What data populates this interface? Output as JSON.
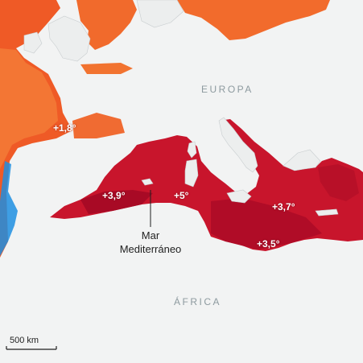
{
  "regions": {
    "europe": "EUROPA",
    "africa": "ÁFRICA"
  },
  "sea": {
    "line1": "Mar",
    "line2": "Mediterráneo"
  },
  "anomalies": {
    "atlantic": "+1,8°",
    "alboran": "+3,9°",
    "balearic": "+5°",
    "ionian": "+3,7°",
    "levant": "+3,5°"
  },
  "scale_bar": {
    "label": "500 km"
  },
  "colors": {
    "land": "#f2f3f3",
    "coast": "#c8cdcf",
    "ocean_warm": "#f0632e",
    "ocean_mid": "#e8391f",
    "mediterranean": "#c8152c",
    "mediterranean_dark": "#a80a25",
    "cold_current": "#1e8ee0"
  }
}
